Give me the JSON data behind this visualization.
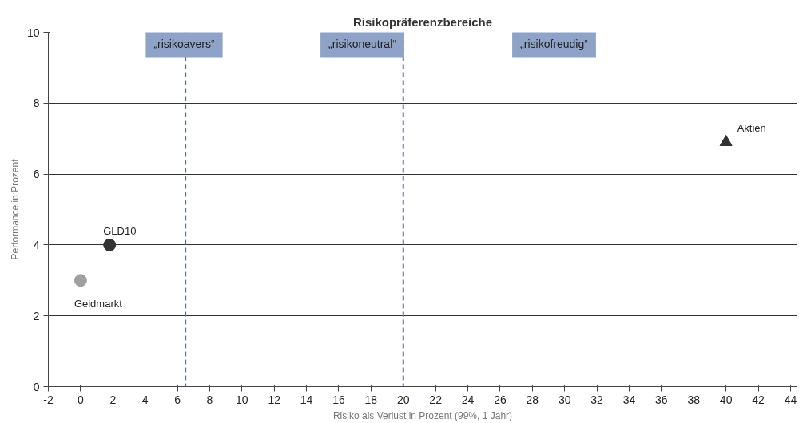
{
  "chart_data": {
    "type": "scatter",
    "title": "Risikopräferenzbereiche",
    "xlabel": "Risiko als Verlust in Prozent (99%, 1 Jahr)",
    "ylabel": "Performance in Prozent",
    "xlim": [
      -2,
      44.4
    ],
    "xticks": [
      -2,
      0,
      2,
      4,
      6,
      8,
      10,
      12,
      14,
      16,
      18,
      20,
      22,
      24,
      26,
      28,
      30,
      32,
      34,
      36,
      38,
      40,
      42,
      44
    ],
    "ylim": [
      0,
      10
    ],
    "yticks": [
      0,
      2,
      4,
      6,
      8,
      10
    ],
    "grid": "y",
    "series": [
      {
        "name": "Geldmarkt",
        "color": "#a0a0a0",
        "x": [
          0
        ],
        "values": [
          3
        ],
        "marker": "circle"
      },
      {
        "name": "GLD10",
        "color": "#333333",
        "x": [
          1.8
        ],
        "values": [
          4
        ],
        "marker": "circle"
      },
      {
        "name": "Aktien",
        "color": "#333333",
        "x": [
          40
        ],
        "values": [
          6.9
        ],
        "marker": "triangle"
      }
    ],
    "ref_lines": [
      {
        "axis": "x",
        "value": 6.5,
        "color": "#5b6f9e",
        "line_style": "dashed"
      },
      {
        "axis": "x",
        "value": 20,
        "color": "#5b6f9e",
        "line_style": "dashed"
      }
    ],
    "annotations": [
      "„risikoavers“",
      "„risikoneutral“",
      "„risikofreudig“"
    ]
  }
}
